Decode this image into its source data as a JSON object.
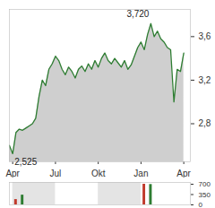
{
  "chart_data": [
    {
      "type": "area",
      "x": [
        0,
        1,
        2,
        3,
        4,
        5,
        6,
        7,
        8,
        9,
        10,
        11,
        12,
        13,
        14,
        15,
        16,
        17,
        18,
        19,
        20,
        21,
        22,
        23,
        24,
        25,
        26,
        27,
        28,
        29,
        30,
        31,
        32,
        33,
        34,
        35,
        36,
        37,
        38,
        39,
        40,
        41,
        42,
        43,
        44,
        45,
        46,
        47,
        48,
        49,
        50,
        51,
        52,
        53
      ],
      "values": [
        2.6,
        2.525,
        2.72,
        2.75,
        2.74,
        2.76,
        2.78,
        2.8,
        2.85,
        3.05,
        3.2,
        3.15,
        3.3,
        3.35,
        3.42,
        3.38,
        3.3,
        3.25,
        3.32,
        3.28,
        3.22,
        3.3,
        3.33,
        3.28,
        3.35,
        3.3,
        3.38,
        3.32,
        3.4,
        3.45,
        3.38,
        3.35,
        3.4,
        3.36,
        3.32,
        3.38,
        3.3,
        3.34,
        3.42,
        3.5,
        3.55,
        3.48,
        3.62,
        3.72,
        3.6,
        3.65,
        3.58,
        3.55,
        3.5,
        3.48,
        3.0,
        3.3,
        3.28,
        3.45
      ],
      "color": "#2e7d32",
      "xlim": [
        0,
        55
      ],
      "xticks": [
        {
          "value": 1,
          "label": "Apr"
        },
        {
          "value": 14,
          "label": "Jul"
        },
        {
          "value": 27,
          "label": "Okt"
        },
        {
          "value": 40,
          "label": "Jan"
        },
        {
          "value": 53,
          "label": "Apr"
        }
      ],
      "ylim": [
        2.45,
        3.85
      ],
      "yticks": [
        {
          "value": 2.8,
          "label": "2,8"
        },
        {
          "value": 3.2,
          "label": "3,2"
        },
        {
          "value": 3.6,
          "label": "3,6"
        }
      ],
      "annotations": [
        {
          "text": "3,720",
          "x": 43,
          "y": 3.72
        },
        {
          "text": "2,525",
          "x": 1,
          "y": 2.525
        }
      ]
    },
    {
      "type": "bar",
      "x": [
        2,
        4,
        41,
        43
      ],
      "values": [
        180,
        330,
        700,
        690
      ],
      "colors": [
        "#c0392b",
        "#2e7d32",
        "#c0392b",
        "#2e7d32"
      ],
      "xlim": [
        0,
        55
      ],
      "xticks": [
        1,
        14,
        27,
        40,
        53
      ],
      "ylim": [
        0,
        760
      ],
      "yticks": [
        0,
        350,
        700
      ],
      "tick_labels": "y"
    }
  ]
}
